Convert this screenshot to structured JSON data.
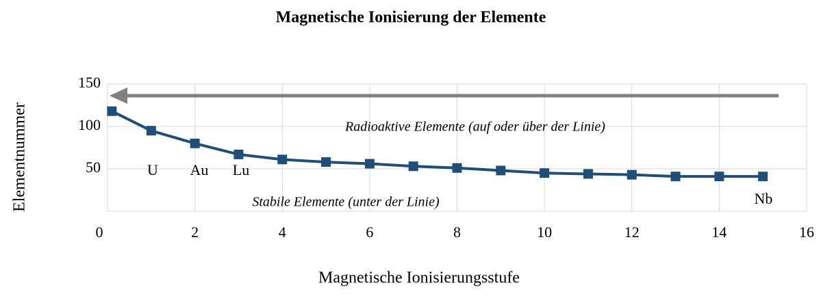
{
  "chart_data": {
    "type": "line",
    "title": "Magnetische Ionisierung der Elemente",
    "x_label": "Magnetische Ionisierungsstufe",
    "y_label": "Elementnummer",
    "x": [
      0.1,
      1,
      2,
      3,
      4,
      5,
      6,
      7,
      8,
      9,
      10,
      11,
      12,
      13,
      14,
      15
    ],
    "series": [
      {
        "name": "Elementnummer",
        "color": "#1f4e79",
        "values": [
          118,
          95,
          80,
          67,
          61,
          58,
          56,
          53,
          51,
          48,
          45,
          44,
          43,
          41,
          41,
          41
        ]
      }
    ],
    "xlim": [
      0,
      16
    ],
    "xticks": [
      0,
      2,
      4,
      6,
      8,
      10,
      12,
      14,
      16
    ],
    "ylim": [
      0,
      150
    ],
    "yticks": [
      50,
      100,
      150
    ],
    "grid": true,
    "annotations": [
      "Radioaktive Elemente (auf oder über der Linie)",
      "Stabile Elemente (unter der Linie)"
    ],
    "point_labels": [
      "U",
      "Au",
      "Lu",
      "Nb"
    ]
  }
}
